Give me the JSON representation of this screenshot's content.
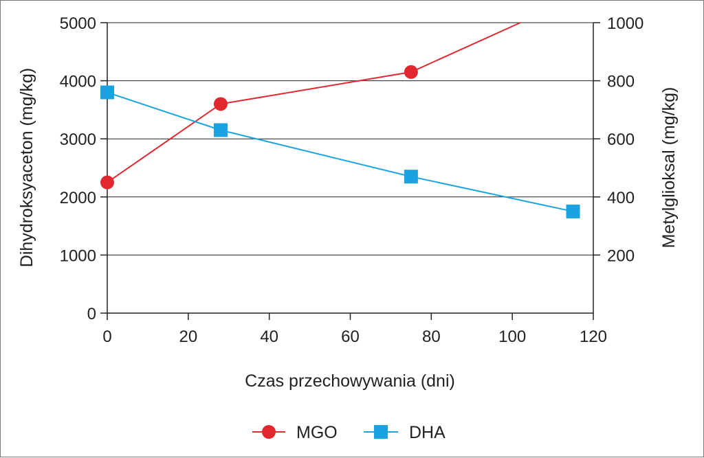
{
  "chart_data": {
    "type": "line",
    "title": "",
    "xlabel": "Czas przechowywania (dni)",
    "ylabel_left": "Dihydroksyaceton (mg/kg)",
    "ylabel_right": "Metylglioksal (mg/kg)",
    "xlim": [
      0,
      120
    ],
    "ylim_left": [
      0,
      5000
    ],
    "ylim_right": [
      0,
      1000
    ],
    "x_ticks": [
      "0",
      "20",
      "40",
      "60",
      "80",
      "100",
      "120"
    ],
    "y_ticks_left": [
      "0",
      "1000",
      "2000",
      "3000",
      "4000",
      "5000"
    ],
    "y_ticks_right": [
      "200",
      "400",
      "600",
      "800",
      "1000"
    ],
    "grid": "horizontal",
    "legend_position": "bottom-center",
    "series": [
      {
        "name": "MGO",
        "axis": "right",
        "color": "#e0282e",
        "marker": "circle",
        "x": [
          0,
          28,
          75,
          102
        ],
        "y": [
          450,
          720,
          830,
          1000
        ],
        "markers": [
          true,
          true,
          true,
          false
        ]
      },
      {
        "name": "DHA",
        "axis": "left",
        "color": "#1aa3e0",
        "marker": "square",
        "x": [
          0,
          28,
          75,
          115
        ],
        "y": [
          3800,
          3150,
          2350,
          1750
        ],
        "markers": [
          true,
          true,
          true,
          true
        ]
      }
    ]
  }
}
